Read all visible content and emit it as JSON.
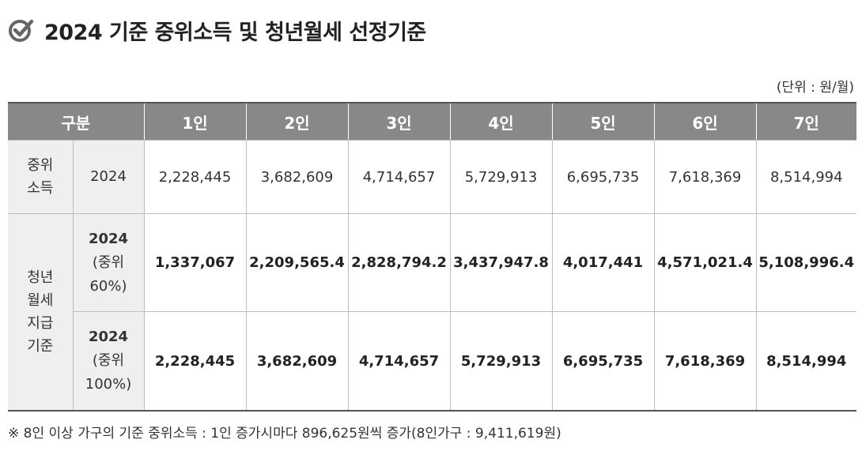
{
  "title": "2024 기준 중위소득 및 청년월세 선정기준",
  "unit": "(단위 : 원/월)",
  "header": {
    "group": "구분",
    "cols": [
      "1인",
      "2인",
      "3인",
      "4인",
      "5인",
      "6인",
      "7인"
    ]
  },
  "rows": {
    "median": {
      "group": "중위\n소득",
      "sub": "2024",
      "values": [
        "2,228,445",
        "3,682,609",
        "4,714,657",
        "5,729,913",
        "6,695,735",
        "7,618,369",
        "8,514,994"
      ]
    },
    "rent_group": "청년\n월세\n지급\n기준",
    "rent60": {
      "sub_year": "2024",
      "sub_detail": "(중위\n60%)",
      "values": [
        "1,337,067",
        "2,209,565.4",
        "2,828,794.2",
        "3,437,947.8",
        "4,017,441",
        "4,571,021.4",
        "5,108,996.4"
      ]
    },
    "rent100": {
      "sub_year": "2024",
      "sub_detail": "(중위\n100%)",
      "values": [
        "2,228,445",
        "3,682,609",
        "4,714,657",
        "5,729,913",
        "6,695,735",
        "7,618,369",
        "8,514,994"
      ]
    }
  },
  "note": "※ 8인 이상 가구의 기준 중위소득 : 1인 증가시마다 896,625원씩 증가(8인가구 : 9,411,619원)",
  "colors": {
    "header_bg": "#888888",
    "label_bg": "#efefef",
    "rule": "#555555"
  },
  "icons": {
    "title_icon": "check-circle-icon"
  }
}
